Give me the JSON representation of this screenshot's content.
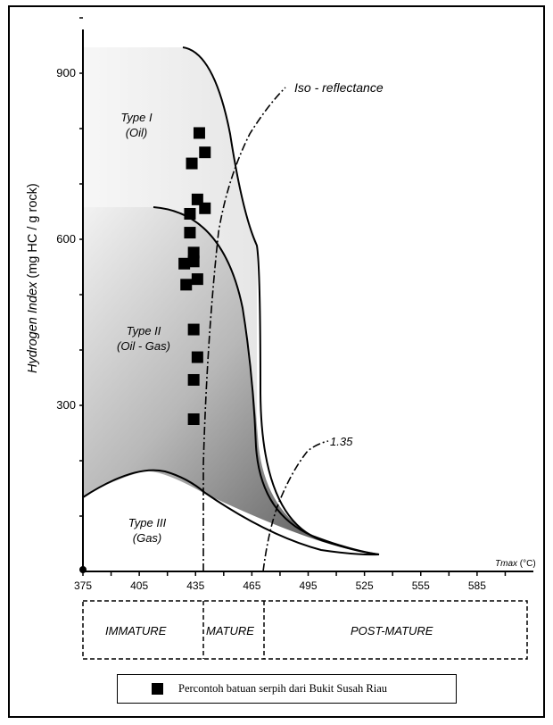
{
  "chart_data": {
    "type": "scatter",
    "xlabel_var": "Tmax",
    "xlabel_unit": " (°C)",
    "ylabel_var": "Hydrogen Index",
    "ylabel_unit": " (mg HC / g rock)",
    "xlim": [
      375,
      615
    ],
    "ylim": [
      0,
      1000
    ],
    "x_ticks": [
      375,
      405,
      435,
      465,
      495,
      525,
      555,
      585
    ],
    "y_ticks": [
      300,
      600,
      900
    ],
    "series": [
      {
        "name": "Percontoh batuan serpih dari Bukit Susah Riau",
        "marker": "square",
        "color": "#000000",
        "points": [
          [
            437,
            792
          ],
          [
            433,
            737
          ],
          [
            440,
            757
          ],
          [
            436,
            672
          ],
          [
            440,
            656
          ],
          [
            432,
            646
          ],
          [
            432,
            612
          ],
          [
            434,
            576
          ],
          [
            434,
            560
          ],
          [
            429,
            556
          ],
          [
            436,
            528
          ],
          [
            430,
            518
          ],
          [
            434,
            437
          ],
          [
            436,
            387
          ],
          [
            434,
            346
          ],
          [
            434,
            275
          ]
        ]
      }
    ],
    "regions": [
      {
        "id": "type1",
        "label": "Type I\n(Oil)"
      },
      {
        "id": "type2",
        "label": "Type II\n(Oil - Gas)"
      },
      {
        "id": "type3",
        "label": "Type III\n(Gas)"
      }
    ],
    "annotations": {
      "iso_reflectance": "Iso - reflectance",
      "iso_value": "1.35"
    },
    "maturity_zones": [
      "IMMATURE",
      "MATURE",
      "POST-MATURE"
    ]
  },
  "colors": {
    "type1_fill": "#f0f0f0",
    "type2_fill_light": "#eeeeee",
    "type2_fill_dark": "#5a5a5a",
    "markers": "#000000"
  }
}
